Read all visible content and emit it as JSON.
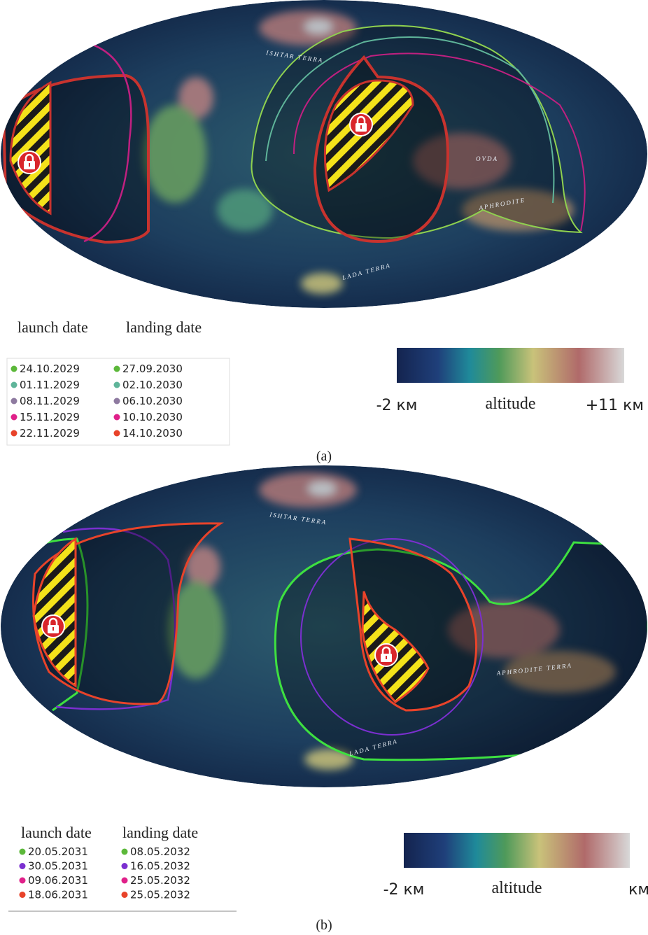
{
  "panels": [
    {
      "map_labels": [
        "ISHTAR TERRA",
        "OVDA",
        "APHRODITE",
        "LADA TERRA"
      ],
      "legend": {
        "launch_header": "launch date",
        "landing_header": "landing date",
        "rows": [
          {
            "launch": "24.10.2029",
            "landing": "27.09.2030",
            "color": "#5cb83a"
          },
          {
            "launch": "01.11.2029",
            "landing": "02.10.2030",
            "color": "#5fb59a"
          },
          {
            "launch": "08.11.2029",
            "landing": "06.10.2030",
            "color": "#8e7aa0"
          },
          {
            "launch": "15.11.2029",
            "landing": "10.10.2030",
            "color": "#e0218a"
          },
          {
            "launch": "22.11.2029",
            "landing": "14.10.2030",
            "color": "#e8432a"
          }
        ]
      },
      "colorbar": {
        "min_label": "-2 км",
        "center_label": "altitude",
        "max_label": "+11 км"
      },
      "caption": "(a)"
    },
    {
      "map_labels": [
        "ISHTAR TERRA",
        "APHRODITE TERRA",
        "LADA TERRA"
      ],
      "legend": {
        "launch_header": "launch date",
        "landing_header": "landing date",
        "rows": [
          {
            "launch": "20.05.2031",
            "landing": "08.05.2032",
            "color": "#5cb83a"
          },
          {
            "launch": "30.05.2031",
            "landing": "16.05.2032",
            "color": "#7b2fd0"
          },
          {
            "launch": "09.06.2031",
            "landing": "25.05.2032",
            "color": "#e0218a"
          },
          {
            "launch": "18.06.2031",
            "landing": "25.05.2032",
            "color": "#e8432a"
          }
        ]
      },
      "colorbar": {
        "min_label": "-2 км",
        "center_label": "altitude",
        "max_label": "км"
      },
      "caption": "(b)"
    }
  ]
}
